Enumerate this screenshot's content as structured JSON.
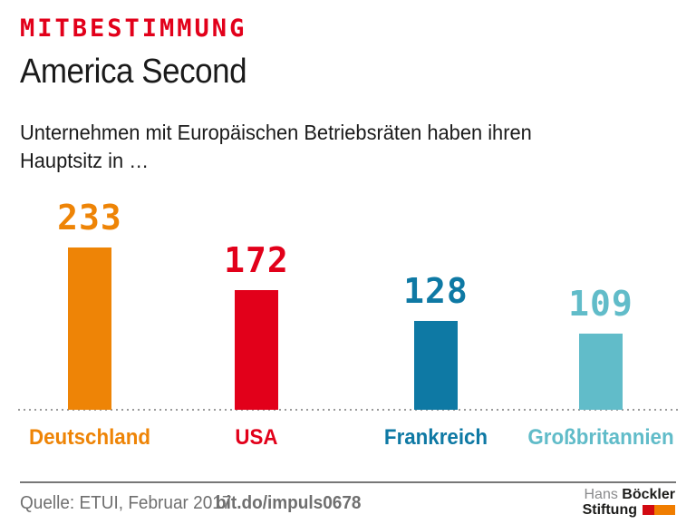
{
  "header": {
    "kicker": "MITBESTIMMUNG",
    "title": "America Second",
    "subtitle": "Unternehmen mit Europäischen Betriebsräten haben ihren Hauptsitz in …"
  },
  "chart_data": {
    "type": "bar",
    "title": "America Second",
    "subtitle": "Unternehmen mit Europäischen Betriebsräten haben ihren Hauptsitz in …",
    "categories": [
      "Deutschland",
      "USA",
      "Frankreich",
      "Großbritannien"
    ],
    "values": [
      233,
      172,
      128,
      109
    ],
    "colors": [
      "#ee8406",
      "#e2001a",
      "#0e79a4",
      "#61bcc9"
    ],
    "xlabel": "",
    "ylabel": "",
    "ylim": [
      0,
      240
    ],
    "grid": false,
    "legend": "none",
    "value_labels": true,
    "baseline_style": "dotted"
  },
  "footer": {
    "source": "Quelle: ETUI, Februar 2017",
    "link": "bit.do/impuls0678"
  },
  "logo": {
    "line1_light": "Hans",
    "line1_bold": "Böckler",
    "line2_bold": "Stiftung",
    "mark_red": "#d20a11",
    "mark_orange": "#f07d00"
  },
  "colors": {
    "kicker_red": "#e2001a",
    "text_dark": "#1a1a1a",
    "footer_gray": "#6f6f6f"
  }
}
